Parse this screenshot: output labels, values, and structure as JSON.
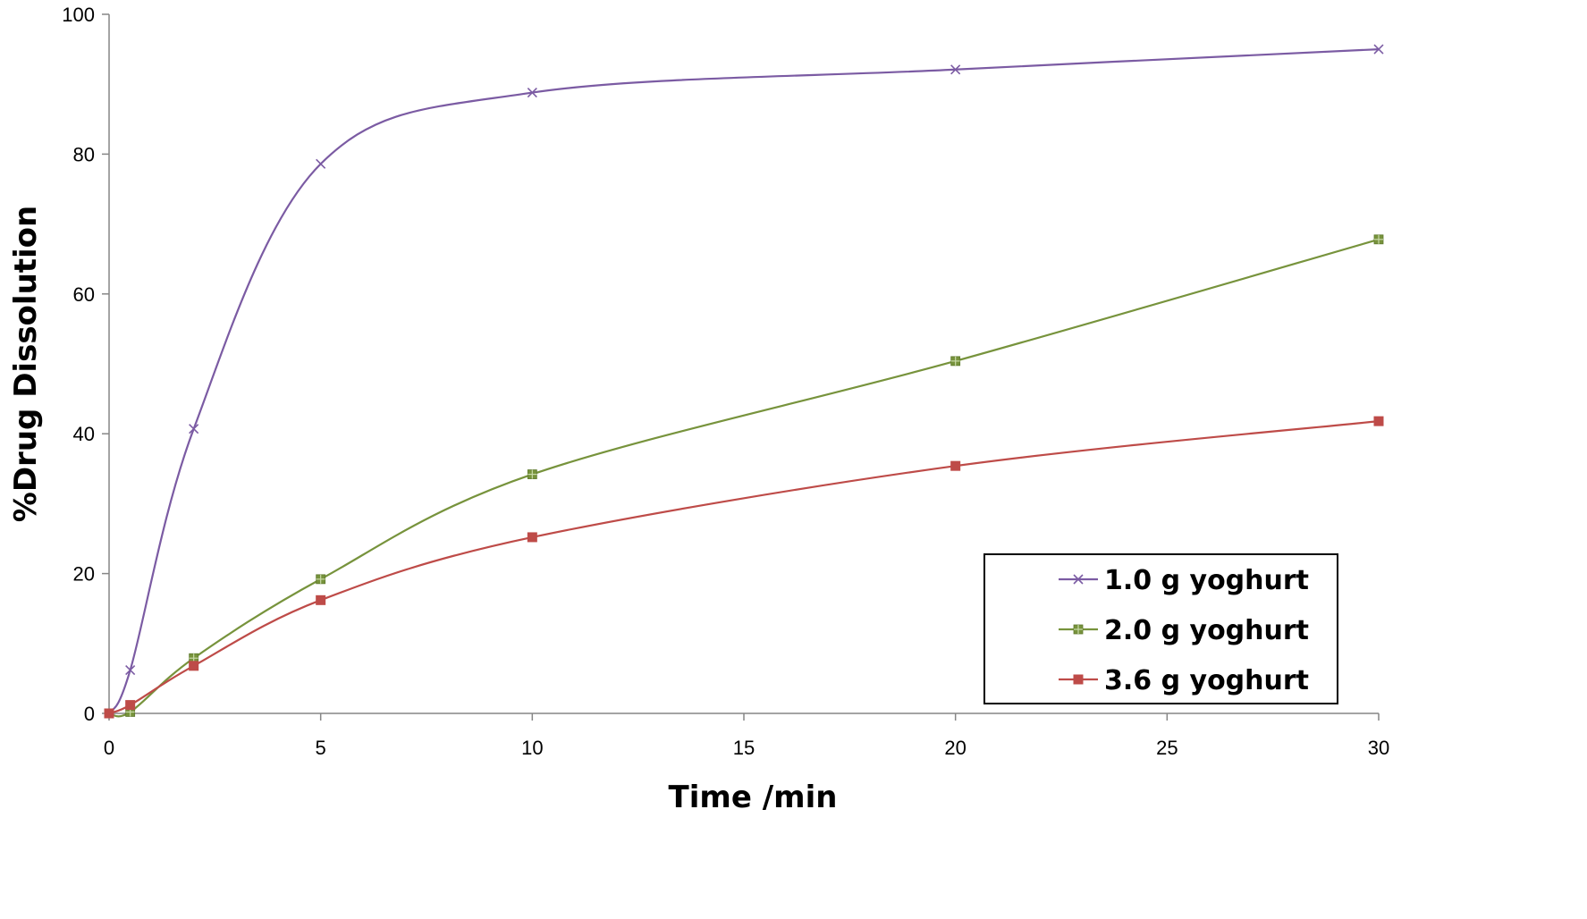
{
  "chart_data": {
    "type": "line",
    "title": "",
    "xlabel": "Time /min",
    "ylabel": "%Drug  Dissolution",
    "xlim": [
      0,
      30
    ],
    "ylim": [
      0,
      100
    ],
    "xticks": [
      "0",
      "5",
      "10",
      "15",
      "20",
      "25",
      "30"
    ],
    "yticks": [
      "0",
      "20",
      "40",
      "60",
      "80",
      "100"
    ],
    "grid": false,
    "legend_position": "bottom-right",
    "smooth": true,
    "series": [
      {
        "name": "1.0 g yoghurt",
        "color": "#7b5ba3",
        "marker": "x",
        "points": [
          {
            "x": 0,
            "y": 0
          },
          {
            "x": 0.5,
            "y": 6.2
          },
          {
            "x": 2,
            "y": 40.7
          },
          {
            "x": 5,
            "y": 78.6
          },
          {
            "x": 10,
            "y": 88.8
          },
          {
            "x": 20,
            "y": 92.1
          },
          {
            "x": 30,
            "y": 95.0
          }
        ]
      },
      {
        "name": "2.0 g yoghurt",
        "color": "#77933c",
        "marker": "square-cross",
        "points": [
          {
            "x": 0,
            "y": 0
          },
          {
            "x": 0.5,
            "y": 0.2
          },
          {
            "x": 2,
            "y": 7.9
          },
          {
            "x": 5,
            "y": 19.2
          },
          {
            "x": 10,
            "y": 34.2
          },
          {
            "x": 20,
            "y": 50.4
          },
          {
            "x": 30,
            "y": 67.8
          }
        ]
      },
      {
        "name": "3.6 g yoghurt",
        "color": "#be4b48",
        "marker": "square",
        "points": [
          {
            "x": 0,
            "y": 0
          },
          {
            "x": 0.5,
            "y": 1.2
          },
          {
            "x": 2,
            "y": 6.8
          },
          {
            "x": 5,
            "y": 16.2
          },
          {
            "x": 10,
            "y": 25.2
          },
          {
            "x": 20,
            "y": 35.4
          },
          {
            "x": 30,
            "y": 41.8
          }
        ]
      }
    ]
  }
}
